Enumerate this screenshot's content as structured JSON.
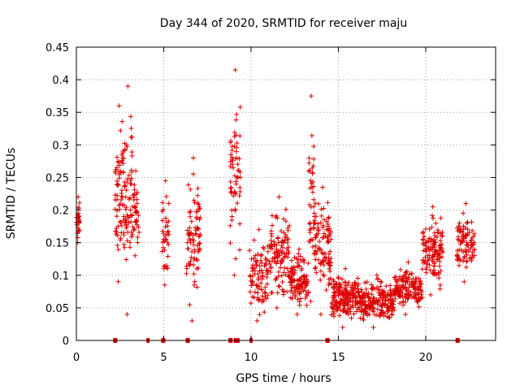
{
  "chart_data": {
    "type": "scatter",
    "title": "Day 344 of 2020, SRMTID for receiver maju",
    "xlabel": "GPS time / hours",
    "ylabel": "SRMTID / TECUs",
    "xlim": [
      0,
      24
    ],
    "ylim": [
      0,
      0.45
    ],
    "x_ticks": [
      0,
      5,
      10,
      15,
      20
    ],
    "y_ticks": [
      0,
      0.05,
      0.1,
      0.15,
      0.2,
      0.25,
      0.3,
      0.35,
      0.4,
      0.45
    ],
    "x_tick_labels": [
      "0",
      "5",
      "10",
      "15",
      "20"
    ],
    "y_tick_labels": [
      "0",
      "0.05",
      "0.1",
      "0.15",
      "0.2",
      "0.25",
      "0.3",
      "0.35",
      "0.4",
      "0.45"
    ],
    "grid": true,
    "marker": "+",
    "color": "#dd0000",
    "zero_markers_x": [
      2.2,
      2.25,
      4.1,
      4.95,
      5.0,
      6.35,
      6.4,
      8.8,
      8.85,
      9.1,
      9.2,
      9.25,
      10.0,
      14.35,
      14.4,
      21.8,
      21.85
    ],
    "clusters": [
      {
        "x_start": 0.0,
        "x_end": 0.2,
        "y_min": 0.15,
        "y_max": 0.22,
        "n": 25
      },
      {
        "x_start": 2.2,
        "x_end": 2.7,
        "y_min": 0.09,
        "y_max": 0.36,
        "n": 60
      },
      {
        "x_start": 2.7,
        "x_end": 3.2,
        "y_min": 0.04,
        "y_max": 0.39,
        "n": 60
      },
      {
        "x_start": 3.2,
        "x_end": 3.6,
        "y_min": 0.13,
        "y_max": 0.26,
        "n": 35
      },
      {
        "x_start": 4.9,
        "x_end": 5.3,
        "y_min": 0.085,
        "y_max": 0.245,
        "n": 35
      },
      {
        "x_start": 6.3,
        "x_end": 7.1,
        "y_min": 0.03,
        "y_max": 0.28,
        "n": 80
      },
      {
        "x_start": 8.8,
        "x_end": 9.4,
        "y_min": 0.1,
        "y_max": 0.415,
        "n": 60
      },
      {
        "x_start": 9.9,
        "x_end": 11.0,
        "y_min": 0.03,
        "y_max": 0.17,
        "n": 90
      },
      {
        "x_start": 11.0,
        "x_end": 12.2,
        "y_min": 0.05,
        "y_max": 0.22,
        "n": 110
      },
      {
        "x_start": 12.2,
        "x_end": 13.3,
        "y_min": 0.04,
        "y_max": 0.14,
        "n": 110
      },
      {
        "x_start": 13.3,
        "x_end": 13.6,
        "y_min": 0.06,
        "y_max": 0.375,
        "n": 35
      },
      {
        "x_start": 13.6,
        "x_end": 14.6,
        "y_min": 0.04,
        "y_max": 0.235,
        "n": 100
      },
      {
        "x_start": 14.6,
        "x_end": 16.2,
        "y_min": 0.02,
        "y_max": 0.11,
        "n": 180
      },
      {
        "x_start": 16.2,
        "x_end": 18.2,
        "y_min": 0.02,
        "y_max": 0.1,
        "n": 200
      },
      {
        "x_start": 18.2,
        "x_end": 19.8,
        "y_min": 0.04,
        "y_max": 0.12,
        "n": 150
      },
      {
        "x_start": 19.8,
        "x_end": 21.0,
        "y_min": 0.07,
        "y_max": 0.205,
        "n": 120
      },
      {
        "x_start": 21.8,
        "x_end": 22.8,
        "y_min": 0.09,
        "y_max": 0.21,
        "n": 90
      }
    ]
  }
}
